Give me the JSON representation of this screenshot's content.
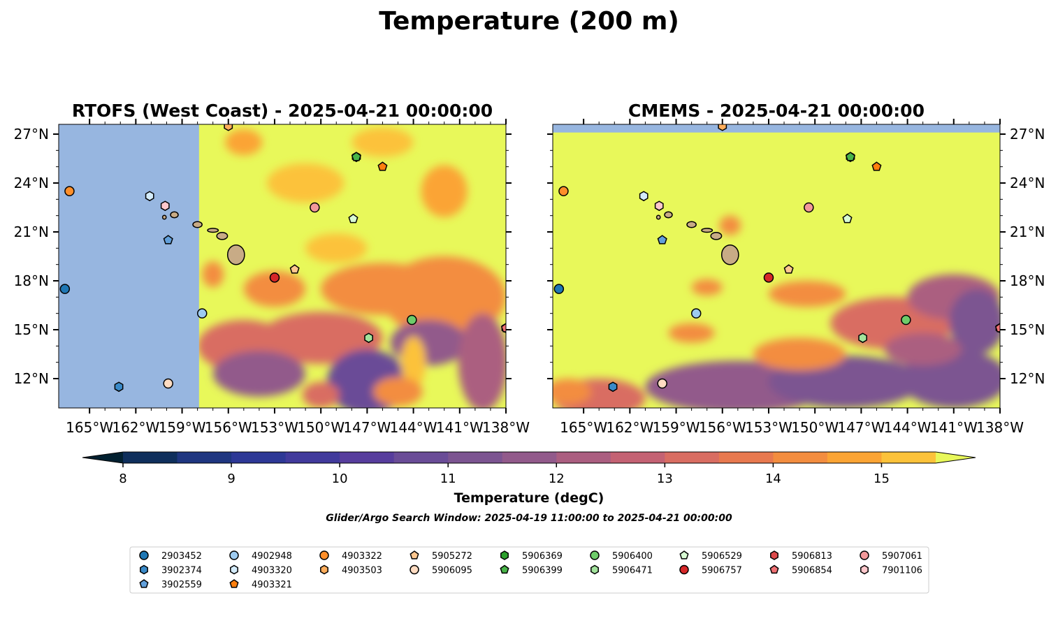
{
  "figure": {
    "title": "Temperature (200 m)",
    "note": "Glider/Argo Search Window: 2025-04-19 11:00:00 to 2025-04-21 00:00:00"
  },
  "chart_data": [
    {
      "type": "heatmap",
      "title": "RTOFS (West Coast) - 2025-04-21 00:00:00",
      "x_ticks": [
        "165°W",
        "162°W",
        "159°W",
        "156°W",
        "153°W",
        "150°W",
        "147°W",
        "144°W",
        "141°W",
        "138°W"
      ],
      "y_ticks": [
        "12°N",
        "15°N",
        "18°N",
        "21°N",
        "24°N",
        "27°N"
      ],
      "xlim": [
        -167,
        -138
      ],
      "ylim": [
        10.2,
        27.6
      ],
      "y_tick_side": "left",
      "no_data_region": {
        "lon_max": -157.9
      },
      "legend": "none"
    },
    {
      "type": "heatmap",
      "title": "CMEMS - 2025-04-21 00:00:00",
      "x_ticks": [
        "165°W",
        "162°W",
        "159°W",
        "156°W",
        "153°W",
        "150°W",
        "147°W",
        "144°W",
        "141°W",
        "138°W"
      ],
      "y_ticks": [
        "12°N",
        "15°N",
        "18°N",
        "21°N",
        "24°N",
        "27°N"
      ],
      "xlim": [
        -167,
        -138
      ],
      "ylim": [
        10.2,
        27.6
      ],
      "y_tick_side": "right",
      "no_data_region": {
        "lat_min": 27.1
      },
      "legend": "none"
    }
  ],
  "colorbar": {
    "label": "Temperature (degC)",
    "ticks": [
      "8",
      "9",
      "10",
      "11",
      "12",
      "13",
      "14",
      "15"
    ],
    "range": [
      7.6,
      15.9
    ],
    "levels": [
      8,
      8.5,
      9,
      9.5,
      10,
      10.5,
      11,
      11.5,
      12,
      12.5,
      13,
      13.5,
      14,
      14.5,
      15,
      15.5
    ],
    "colors": [
      "#03263a",
      "#0f2f5c",
      "#1f3680",
      "#2d3896",
      "#413a9c",
      "#573d9d",
      "#6a4c97",
      "#7c5491",
      "#925a8b",
      "#ab5e80",
      "#c46273",
      "#d96d62",
      "#e8794f",
      "#f38d3f",
      "#fba434",
      "#fcc23a",
      "#f4dd4a"
    ],
    "under_color": "#022030",
    "over_color": "#e8f85a"
  },
  "colors": {
    "land": "#c8ab86",
    "ocean_nodata": "#97b6e0"
  },
  "platforms": [
    {
      "id": "2903452",
      "marker": "circle",
      "color": "#1f77b4",
      "lon": -166.6,
      "lat": 17.5
    },
    {
      "id": "3902374",
      "marker": "hexagon",
      "color": "#3a8ac8",
      "lon": -163.1,
      "lat": 11.5
    },
    {
      "id": "3902559",
      "marker": "pentagon",
      "color": "#62a0db",
      "lon": -159.9,
      "lat": 20.5
    },
    {
      "id": "4902948",
      "marker": "circle",
      "color": "#9ecbf0",
      "lon": -157.7,
      "lat": 16.0
    },
    {
      "id": "4903320",
      "marker": "hexagon",
      "color": "#d4ecfb",
      "lon": -161.1,
      "lat": 23.2
    },
    {
      "id": "4903321",
      "marker": "pentagon",
      "color": "#ff7f0e",
      "lon": -146.0,
      "lat": 25.0
    },
    {
      "id": "4903322",
      "marker": "circle",
      "color": "#ff8f2a",
      "lon": -166.3,
      "lat": 23.5
    },
    {
      "id": "4903503",
      "marker": "hexagon",
      "color": "#ffae5c",
      "lon": -156.0,
      "lat": 27.5
    },
    {
      "id": "5905272",
      "marker": "pentagon",
      "color": "#ffc78f",
      "lon": -151.7,
      "lat": 18.7
    },
    {
      "id": "5906095",
      "marker": "circle",
      "color": "#ffdcc2",
      "lon": -159.9,
      "lat": 11.7
    },
    {
      "id": "5906369",
      "marker": "hexagon",
      "color": "#2ca02c",
      "lon": -147.7,
      "lat": 25.6
    },
    {
      "id": "5906399",
      "marker": "pentagon",
      "color": "#49b449",
      "lon": -147.7,
      "lat": 25.6
    },
    {
      "id": "5906400",
      "marker": "circle",
      "color": "#6ecc6a",
      "lon": -144.1,
      "lat": 15.6
    },
    {
      "id": "5906471",
      "marker": "hexagon",
      "color": "#a2e39c",
      "lon": -146.9,
      "lat": 14.5
    },
    {
      "id": "5906529",
      "marker": "pentagon",
      "color": "#d9fcd4",
      "lon": -147.9,
      "lat": 21.8
    },
    {
      "id": "5906757",
      "marker": "circle",
      "color": "#d62728",
      "lon": -153.0,
      "lat": 18.2
    },
    {
      "id": "5906813",
      "marker": "hexagon",
      "color": "#dd4a4b",
      "lon": -138.0,
      "lat": 15.1
    },
    {
      "id": "5906854",
      "marker": "pentagon",
      "color": "#f07174",
      "lon": -138.0,
      "lat": 15.1
    },
    {
      "id": "5907061",
      "marker": "circle",
      "color": "#f2999a",
      "lon": -150.4,
      "lat": 22.5
    },
    {
      "id": "7901106",
      "marker": "hexagon",
      "color": "#ffc8cc",
      "lon": -160.1,
      "lat": 22.6
    }
  ]
}
